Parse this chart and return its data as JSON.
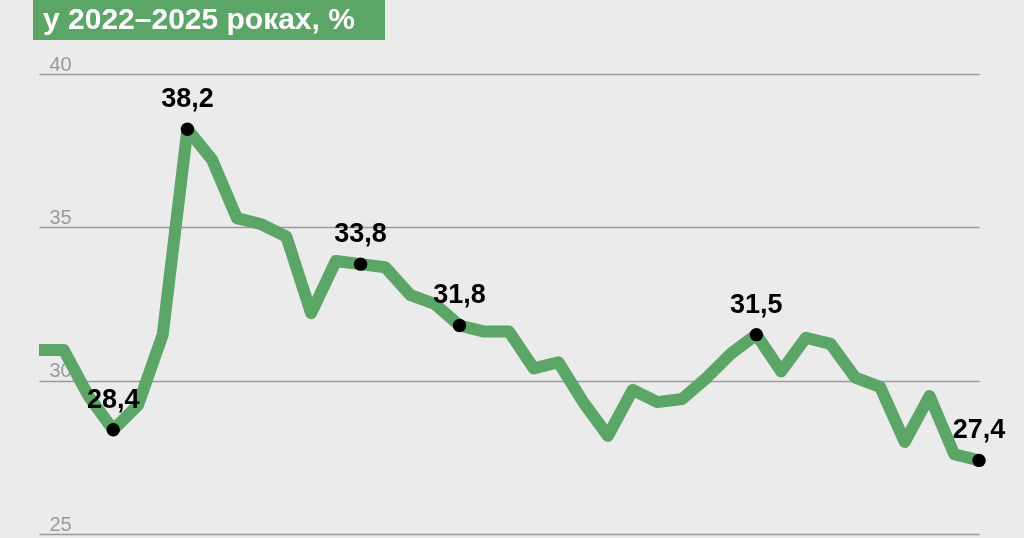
{
  "chart_data": {
    "type": "line",
    "title": "у 2022–2025 роках, %",
    "categories": [
      null,
      null,
      null,
      null,
      null,
      null,
      null,
      null,
      null,
      null,
      null,
      null,
      null,
      null,
      null,
      null,
      null,
      null,
      null,
      null,
      null,
      null,
      null,
      null,
      null,
      null,
      null,
      null,
      null,
      null,
      null,
      null,
      null,
      null,
      null,
      null,
      null,
      null,
      null
    ],
    "series": [
      {
        "color": "#5ba566",
        "values": [
          31.0,
          31.0,
          29.5,
          28.4,
          29.2,
          31.5,
          38.2,
          37.2,
          35.3,
          35.1,
          34.7,
          32.2,
          33.9,
          33.8,
          33.7,
          32.8,
          32.5,
          31.8,
          31.6,
          31.6,
          30.4,
          30.6,
          29.3,
          28.2,
          29.7,
          29.3,
          29.4,
          30.1,
          30.9,
          31.5,
          30.3,
          31.4,
          31.2,
          30.1,
          29.8,
          28.0,
          29.5,
          27.6,
          27.4
        ],
        "value_labels": [
          null,
          null,
          null,
          "28,4",
          null,
          null,
          "38,2",
          null,
          null,
          null,
          null,
          null,
          null,
          "33,8",
          null,
          null,
          null,
          "31,8",
          null,
          null,
          null,
          null,
          null,
          null,
          null,
          null,
          null,
          null,
          null,
          "31,5",
          null,
          null,
          null,
          null,
          null,
          null,
          null,
          null,
          "27,4"
        ]
      }
    ],
    "ylim": [
      25,
      40
    ],
    "yticks": [
      25,
      30,
      35,
      40
    ],
    "grid": "y",
    "line_style": "solid"
  }
}
